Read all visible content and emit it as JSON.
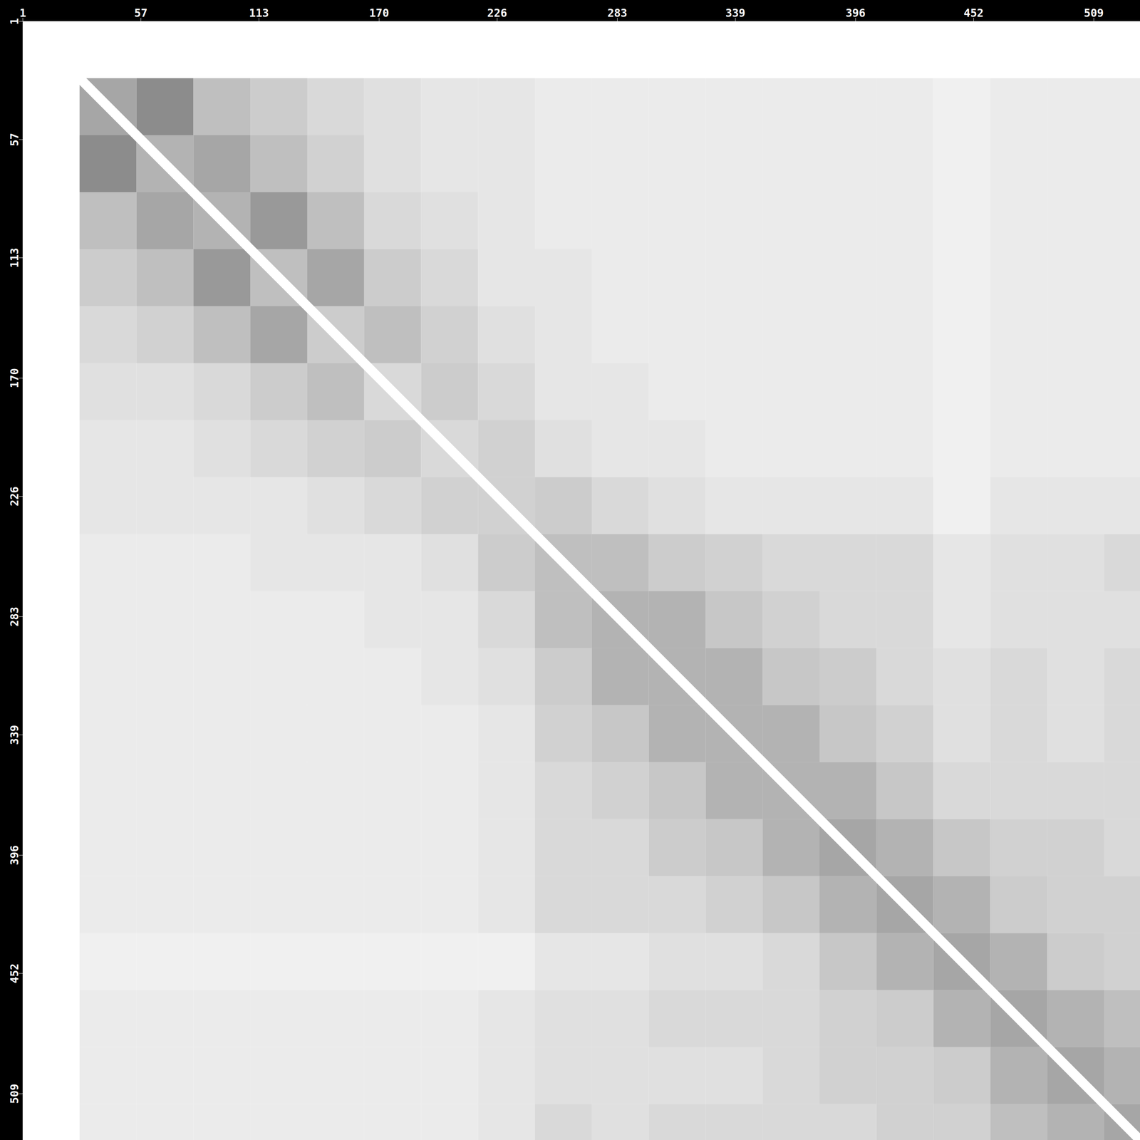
{
  "chart_data": {
    "type": "heatmap",
    "bins": [
      1,
      28,
      55,
      82,
      109,
      136,
      163,
      190,
      217,
      244,
      271,
      298,
      325,
      352,
      379,
      406,
      433,
      460,
      487,
      514,
      541
    ],
    "xlim": [
      1,
      531
    ],
    "ylim": [
      1,
      531
    ],
    "xticks": [
      1,
      57,
      113,
      170,
      226,
      283,
      339,
      396,
      452,
      509
    ],
    "yticks": [
      1,
      57,
      113,
      170,
      226,
      283,
      339,
      396,
      452,
      509
    ],
    "zlim": [
      0,
      1
    ],
    "cells": [
      [
        0,
        0,
        0,
        0,
        0,
        0,
        0,
        0,
        0,
        0,
        0,
        0,
        0,
        0,
        0,
        0,
        0,
        0,
        0,
        0
      ],
      [
        0,
        0.35,
        0.45,
        0.25,
        0.2,
        0.15,
        0.12,
        0.1,
        0.1,
        0.08,
        0.08,
        0.08,
        0.08,
        0.08,
        0.08,
        0.08,
        0.06,
        0.08,
        0.08,
        0.08
      ],
      [
        0,
        0.45,
        0.3,
        0.35,
        0.25,
        0.18,
        0.12,
        0.1,
        0.1,
        0.08,
        0.08,
        0.08,
        0.08,
        0.08,
        0.08,
        0.08,
        0.06,
        0.08,
        0.08,
        0.08
      ],
      [
        0,
        0.25,
        0.35,
        0.3,
        0.4,
        0.25,
        0.15,
        0.12,
        0.1,
        0.08,
        0.08,
        0.08,
        0.08,
        0.08,
        0.08,
        0.08,
        0.06,
        0.08,
        0.08,
        0.08
      ],
      [
        0,
        0.2,
        0.25,
        0.4,
        0.25,
        0.35,
        0.2,
        0.15,
        0.1,
        0.1,
        0.08,
        0.08,
        0.08,
        0.08,
        0.08,
        0.08,
        0.06,
        0.08,
        0.08,
        0.08
      ],
      [
        0,
        0.15,
        0.18,
        0.25,
        0.35,
        0.2,
        0.25,
        0.18,
        0.12,
        0.1,
        0.08,
        0.08,
        0.08,
        0.08,
        0.08,
        0.08,
        0.06,
        0.08,
        0.08,
        0.08
      ],
      [
        0,
        0.12,
        0.12,
        0.15,
        0.2,
        0.25,
        0.15,
        0.2,
        0.15,
        0.1,
        0.1,
        0.08,
        0.08,
        0.08,
        0.08,
        0.08,
        0.06,
        0.08,
        0.08,
        0.08
      ],
      [
        0,
        0.1,
        0.1,
        0.12,
        0.15,
        0.18,
        0.2,
        0.15,
        0.18,
        0.12,
        0.1,
        0.1,
        0.08,
        0.08,
        0.08,
        0.08,
        0.06,
        0.08,
        0.08,
        0.08
      ],
      [
        0,
        0.1,
        0.1,
        0.1,
        0.1,
        0.12,
        0.15,
        0.18,
        0.18,
        0.2,
        0.15,
        0.12,
        0.1,
        0.1,
        0.1,
        0.1,
        0.06,
        0.1,
        0.1,
        0.1
      ],
      [
        0,
        0.08,
        0.08,
        0.08,
        0.1,
        0.1,
        0.1,
        0.12,
        0.2,
        0.25,
        0.25,
        0.2,
        0.18,
        0.15,
        0.15,
        0.15,
        0.1,
        0.12,
        0.12,
        0.15
      ],
      [
        0,
        0.08,
        0.08,
        0.08,
        0.08,
        0.08,
        0.1,
        0.1,
        0.15,
        0.25,
        0.3,
        0.3,
        0.22,
        0.18,
        0.15,
        0.15,
        0.1,
        0.12,
        0.12,
        0.12
      ],
      [
        0,
        0.08,
        0.08,
        0.08,
        0.08,
        0.08,
        0.08,
        0.1,
        0.12,
        0.2,
        0.3,
        0.3,
        0.3,
        0.22,
        0.2,
        0.15,
        0.12,
        0.15,
        0.12,
        0.15
      ],
      [
        0,
        0.08,
        0.08,
        0.08,
        0.08,
        0.08,
        0.08,
        0.08,
        0.1,
        0.18,
        0.22,
        0.3,
        0.3,
        0.3,
        0.22,
        0.18,
        0.12,
        0.15,
        0.12,
        0.15
      ],
      [
        0,
        0.08,
        0.08,
        0.08,
        0.08,
        0.08,
        0.08,
        0.08,
        0.1,
        0.15,
        0.18,
        0.22,
        0.3,
        0.3,
        0.3,
        0.22,
        0.15,
        0.15,
        0.15,
        0.15
      ],
      [
        0,
        0.08,
        0.08,
        0.08,
        0.08,
        0.08,
        0.08,
        0.08,
        0.1,
        0.15,
        0.15,
        0.2,
        0.22,
        0.3,
        0.35,
        0.3,
        0.22,
        0.18,
        0.18,
        0.15
      ],
      [
        0,
        0.08,
        0.08,
        0.08,
        0.08,
        0.08,
        0.08,
        0.08,
        0.1,
        0.15,
        0.15,
        0.15,
        0.18,
        0.22,
        0.3,
        0.35,
        0.3,
        0.2,
        0.18,
        0.18
      ],
      [
        0,
        0.06,
        0.06,
        0.06,
        0.06,
        0.06,
        0.06,
        0.06,
        0.06,
        0.1,
        0.1,
        0.12,
        0.12,
        0.15,
        0.22,
        0.3,
        0.35,
        0.3,
        0.2,
        0.18
      ],
      [
        0,
        0.08,
        0.08,
        0.08,
        0.08,
        0.08,
        0.08,
        0.08,
        0.1,
        0.12,
        0.12,
        0.15,
        0.15,
        0.15,
        0.18,
        0.2,
        0.3,
        0.35,
        0.3,
        0.25
      ],
      [
        0,
        0.08,
        0.08,
        0.08,
        0.08,
        0.08,
        0.08,
        0.08,
        0.1,
        0.12,
        0.12,
        0.12,
        0.12,
        0.15,
        0.18,
        0.18,
        0.2,
        0.3,
        0.35,
        0.3
      ],
      [
        0,
        0.08,
        0.08,
        0.08,
        0.08,
        0.08,
        0.08,
        0.08,
        0.1,
        0.15,
        0.12,
        0.15,
        0.15,
        0.15,
        0.15,
        0.18,
        0.18,
        0.25,
        0.3,
        0.35
      ]
    ]
  }
}
